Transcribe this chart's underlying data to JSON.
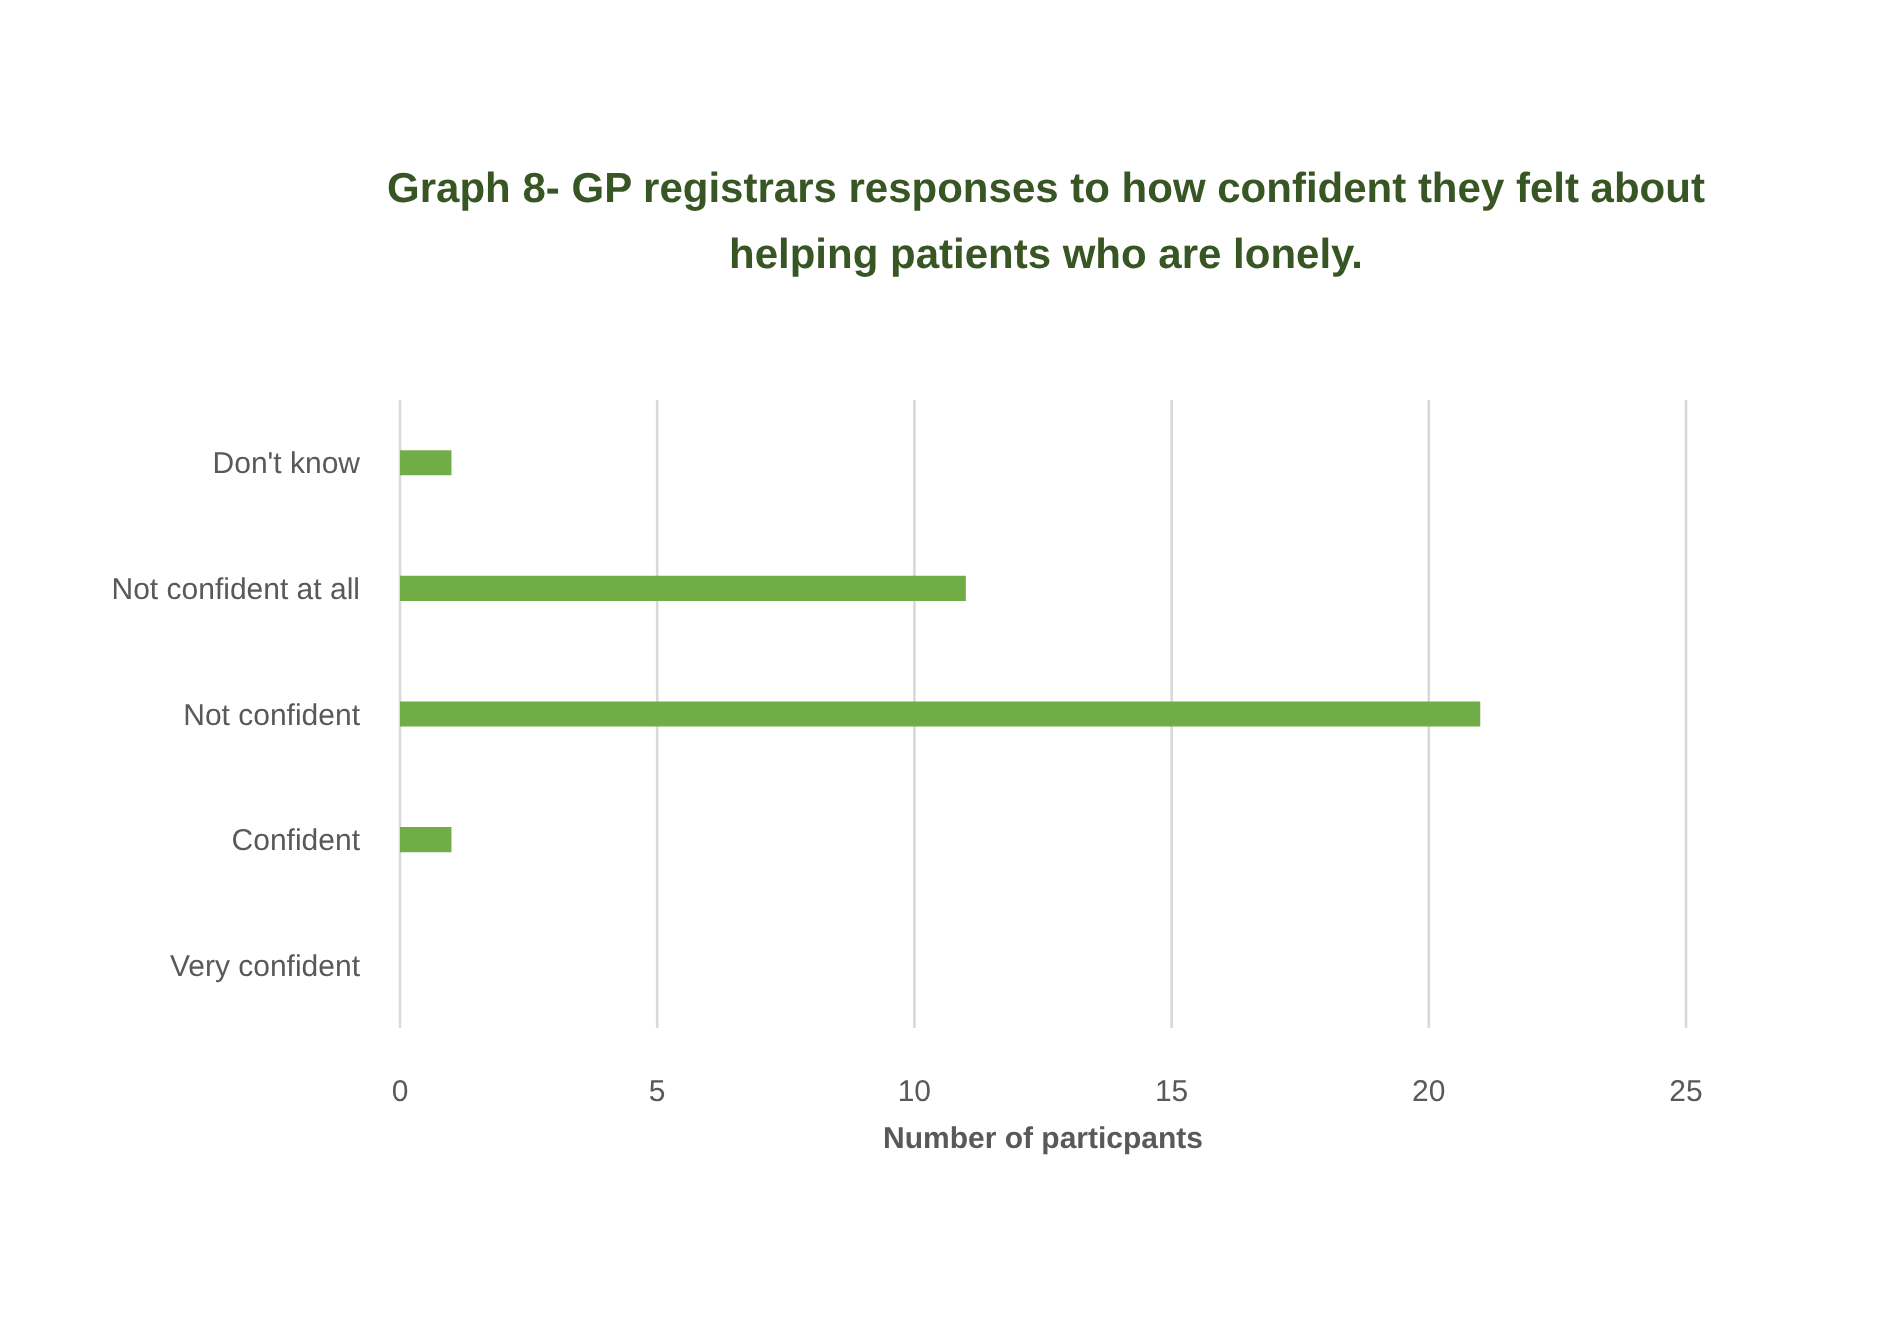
{
  "chart_data": {
    "type": "bar",
    "orientation": "horizontal",
    "title": "Graph 8- GP registrars responses to how confident they felt about helping patients who are lonely.",
    "xlabel": "Number of particpants",
    "categories": [
      "Don't know",
      "Not confident at all",
      "Not confident",
      "Confident",
      "Very confident"
    ],
    "values": [
      1,
      11,
      21,
      1,
      0
    ],
    "color": "#70ad47",
    "xlim": [
      0,
      25
    ],
    "xticks": [
      0,
      5,
      10,
      15,
      20,
      25
    ],
    "grid": "x"
  }
}
